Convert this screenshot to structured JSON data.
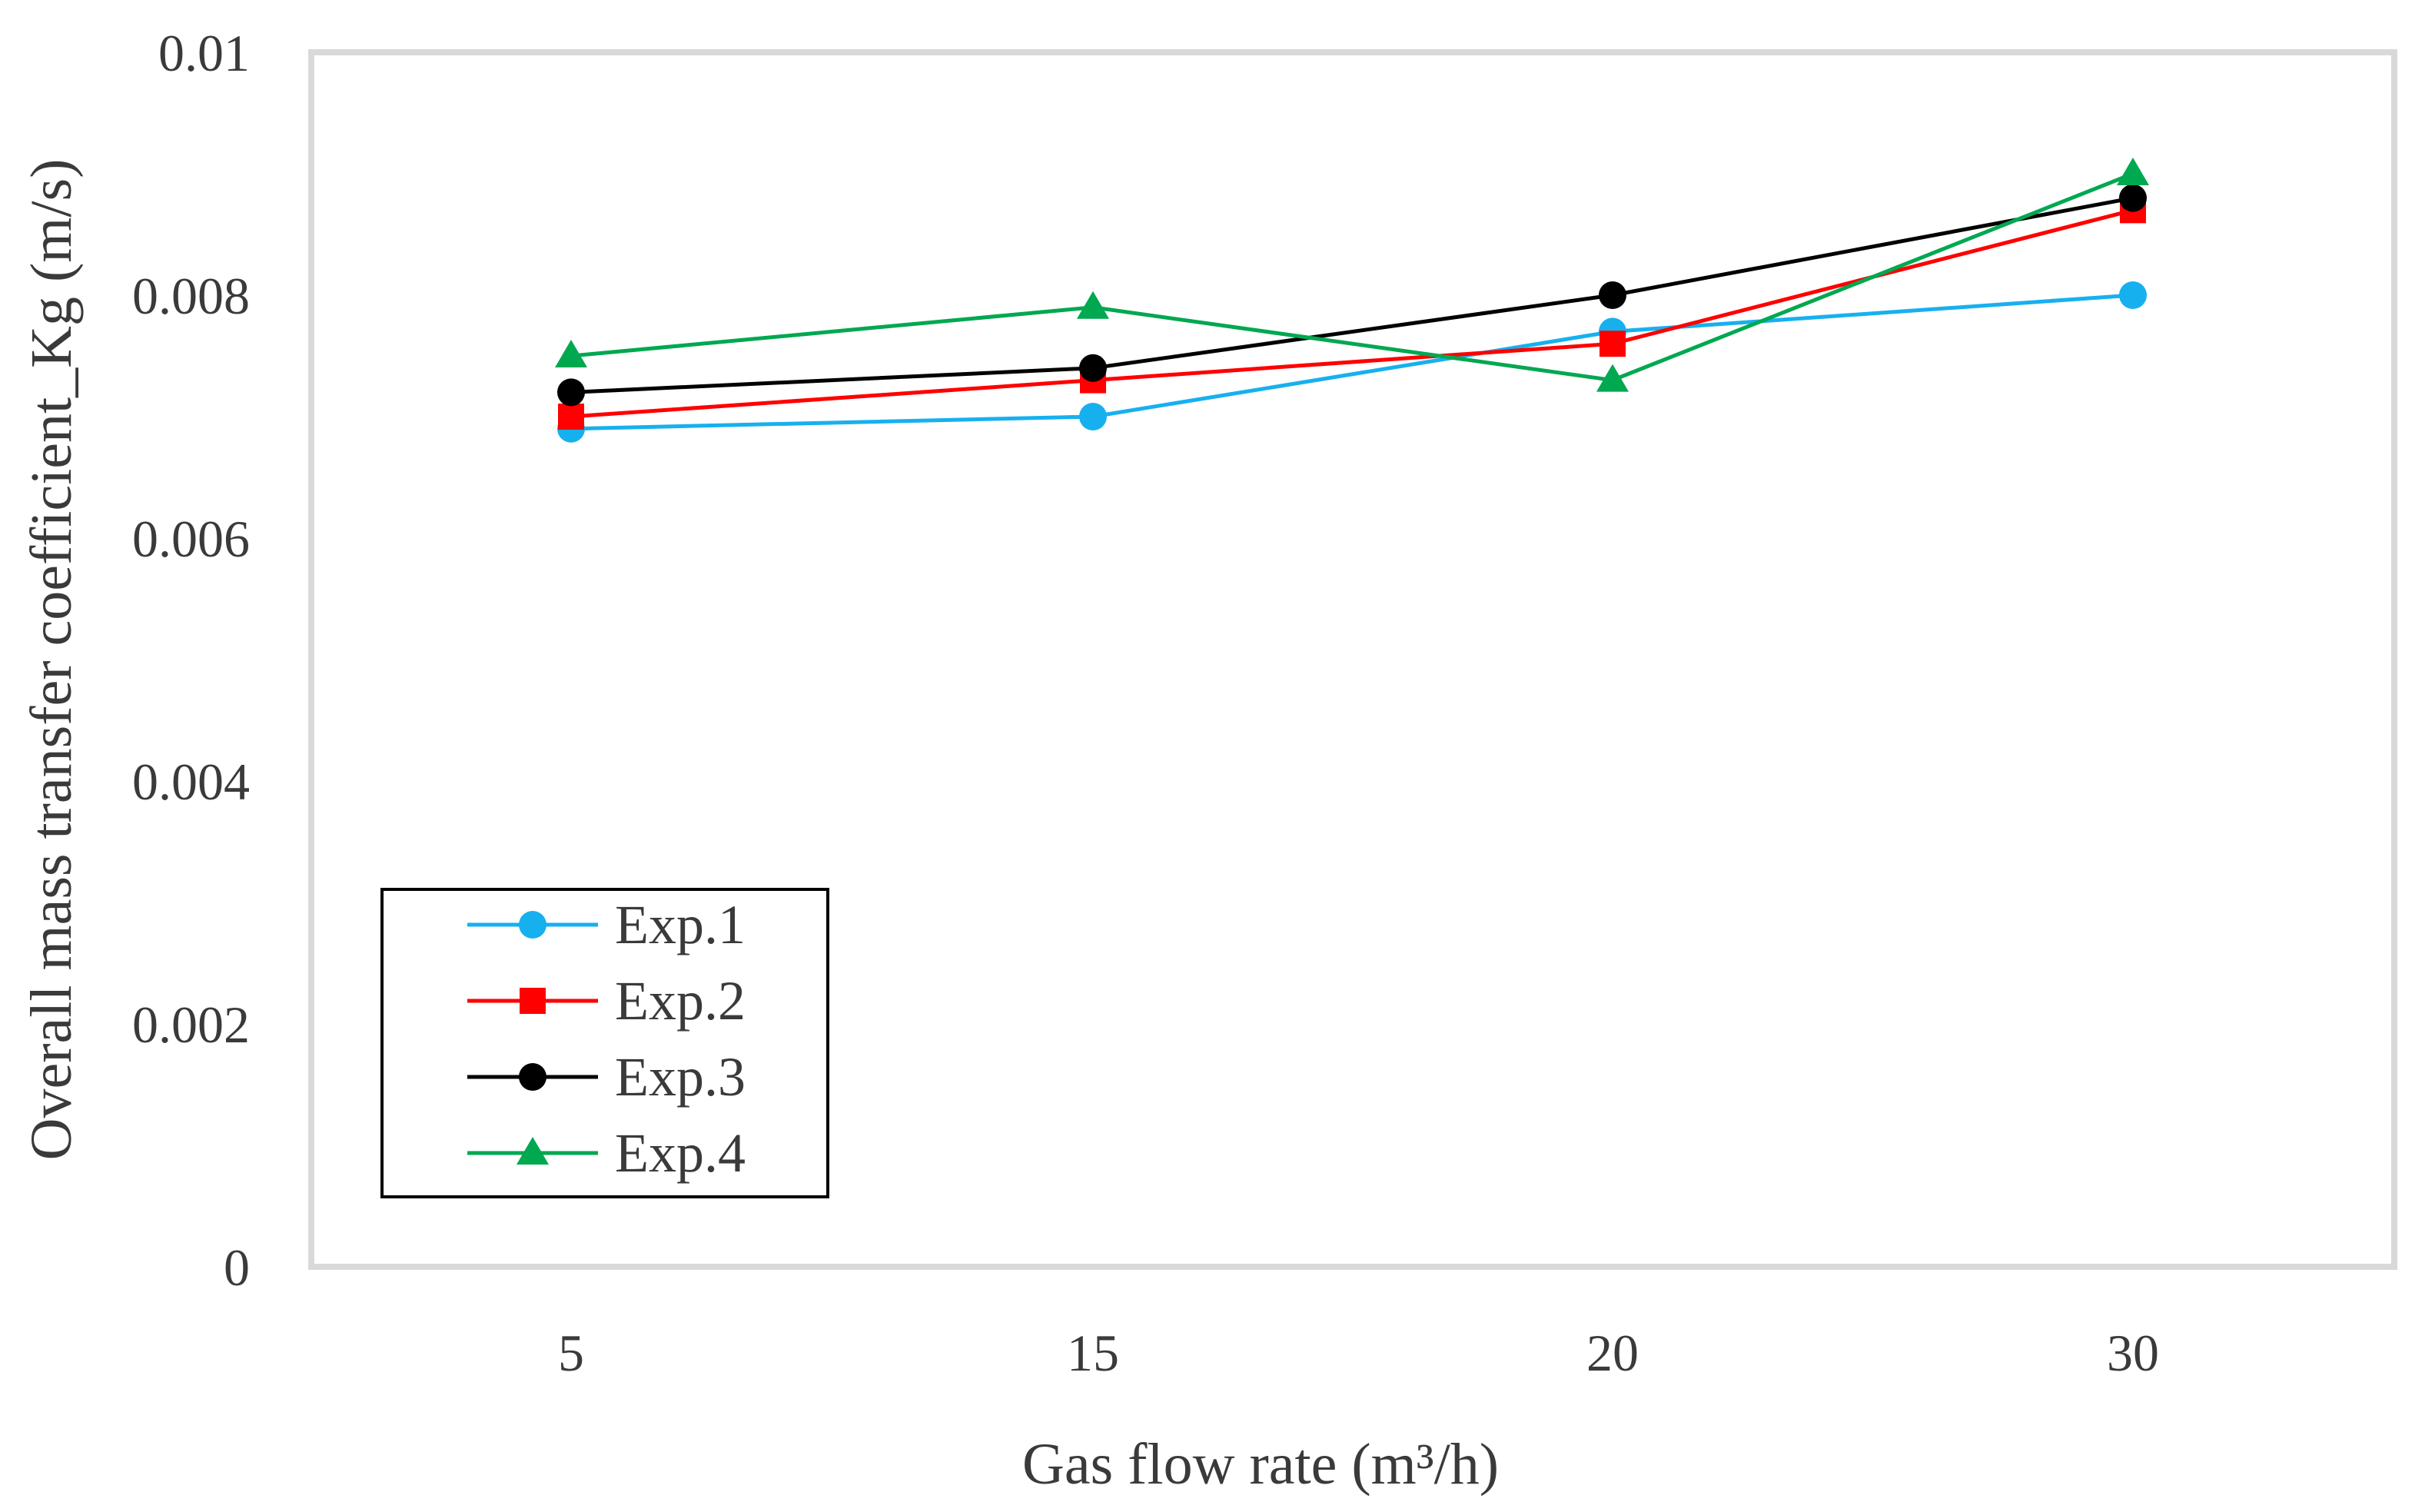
{
  "chart_data": {
    "type": "line",
    "title": "",
    "xlabel": "Gas flow rate (m³/h)",
    "ylabel": "Overall mass transfer coefficient_Kg (m/s)",
    "categories": [
      "5",
      "15",
      "20",
      "30"
    ],
    "ylim": [
      0,
      0.01
    ],
    "yticks": [
      "0",
      "0.002",
      "0.004",
      "0.006",
      "0.008",
      "0.01"
    ],
    "grid": false,
    "legend_position": "bottom-left",
    "series": [
      {
        "name": "Exp.1",
        "color": "#17b0ef",
        "marker": "circle",
        "values": [
          0.0069,
          0.007,
          0.0077,
          0.008
        ]
      },
      {
        "name": "Exp.2",
        "color": "#ff0000",
        "marker": "square",
        "values": [
          0.007,
          0.0073,
          0.0076,
          0.0087
        ]
      },
      {
        "name": "Exp.3",
        "color": "#000000",
        "marker": "circle",
        "values": [
          0.0072,
          0.0074,
          0.008,
          0.0088
        ]
      },
      {
        "name": "Exp.4",
        "color": "#00a850",
        "marker": "triangle",
        "values": [
          0.0075,
          0.0079,
          0.0073,
          0.009
        ]
      }
    ]
  }
}
